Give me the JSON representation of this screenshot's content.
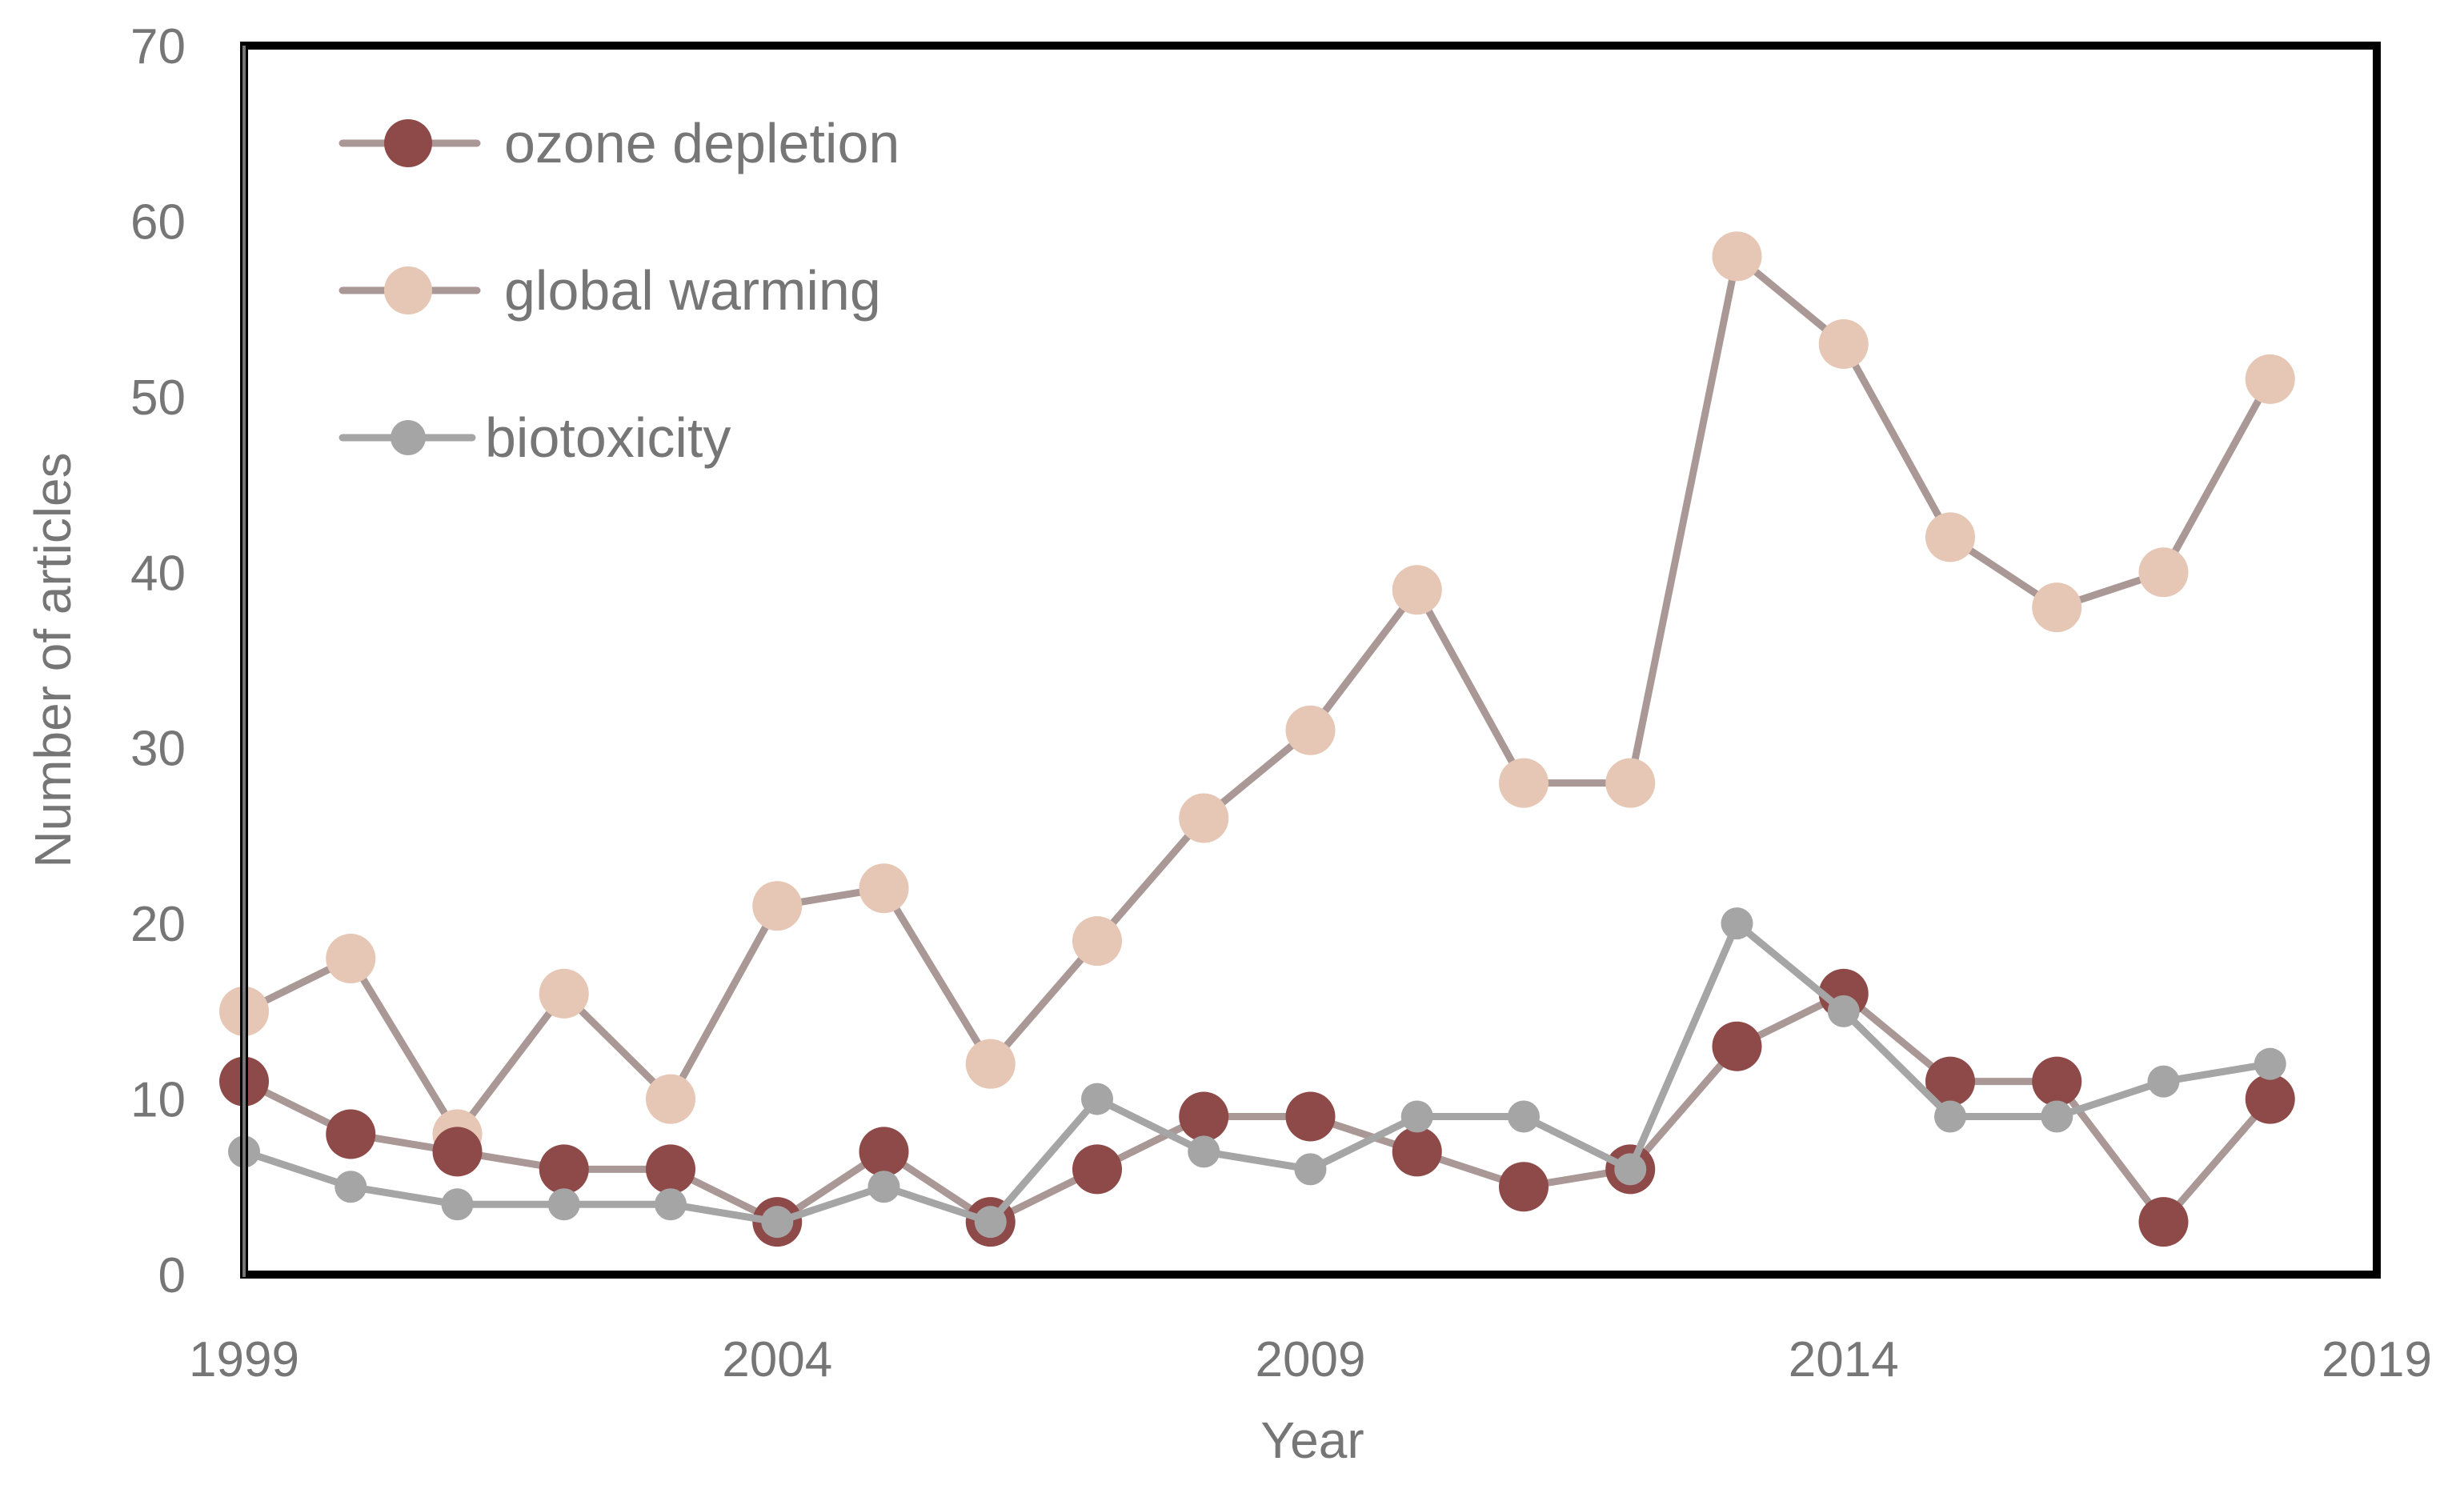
{
  "chart_data": {
    "type": "line",
    "title": "",
    "xlabel": "Year",
    "ylabel": "Number of articles",
    "xlim": [
      1999,
      2019
    ],
    "ylim": [
      0,
      70
    ],
    "x_ticks": [
      "1999",
      "2004",
      "2009",
      "2014",
      "2019"
    ],
    "y_ticks": [
      "0",
      "10",
      "20",
      "30",
      "40",
      "50",
      "60",
      "70"
    ],
    "x": [
      1999,
      2000,
      2001,
      2002,
      2003,
      2004,
      2005,
      2006,
      2007,
      2008,
      2009,
      2010,
      2011,
      2012,
      2013,
      2014,
      2015,
      2016,
      2017,
      2018
    ],
    "grid": false,
    "legend_position": "top-left",
    "series": [
      {
        "name": "global warming",
        "marker_color": "#e6c6b4",
        "line_color": "#a99895",
        "values": [
          15,
          18,
          8,
          16,
          10,
          21,
          22,
          12,
          19,
          26,
          31,
          39,
          28,
          28,
          58,
          53,
          42,
          38,
          40,
          51
        ]
      },
      {
        "name": "ozone depletion",
        "marker_color": "#8e4a48",
        "line_color": "#a99895",
        "values": [
          11,
          8,
          7,
          6,
          6,
          3,
          7,
          3,
          6,
          9,
          9,
          7,
          5,
          6,
          13,
          16,
          11,
          11,
          3,
          10
        ]
      },
      {
        "name": "biotoxicity",
        "marker_color": "#a5a5a5",
        "line_color": "#a5a5a5",
        "values": [
          7,
          5,
          4,
          4,
          4,
          3,
          5,
          3,
          10,
          7,
          6,
          9,
          9,
          6,
          20,
          15,
          9,
          9,
          11,
          12
        ]
      }
    ],
    "legend_order": [
      1,
      0,
      2
    ]
  }
}
